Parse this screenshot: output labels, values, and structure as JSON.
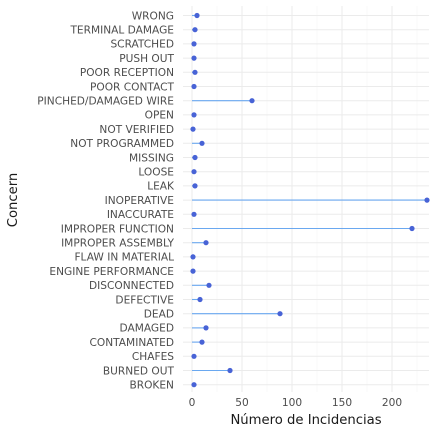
{
  "chart_data": {
    "type": "lollipop",
    "orientation": "horizontal",
    "xlabel": "Número de Incidencias",
    "ylabel": "Concern",
    "xlim": [
      0,
      235
    ],
    "x_ticks": [
      0,
      50,
      100,
      150,
      200
    ],
    "grid": true,
    "colors": {
      "stick": "#6aa8f0",
      "dot": "#4863d6"
    },
    "categories": [
      "WRONG",
      "TERMINAL DAMAGE",
      "SCRATCHED",
      "PUSH OUT",
      "POOR RECEPTION",
      "POOR CONTACT",
      "PINCHED/DAMAGED WIRE",
      "OPEN",
      "NOT VERIFIED",
      "NOT PROGRAMMED",
      "MISSING",
      "LOOSE",
      "LEAK",
      "INOPERATIVE",
      "INACCURATE",
      "IMPROPER FUNCTION",
      "IMPROPER ASSEMBLY",
      "FLAW IN MATERIAL",
      "ENGINE PERFORMANCE",
      "DISCONNECTED",
      "DEFECTIVE",
      "DEAD",
      "DAMAGED",
      "CONTAMINATED",
      "CHAFES",
      "BURNED OUT",
      "BROKEN"
    ],
    "values": [
      5,
      3,
      2,
      2,
      3,
      2,
      60,
      2,
      1,
      10,
      3,
      2,
      3,
      235,
      2,
      220,
      14,
      1,
      1,
      17,
      8,
      88,
      14,
      10,
      2,
      38,
      2
    ]
  }
}
